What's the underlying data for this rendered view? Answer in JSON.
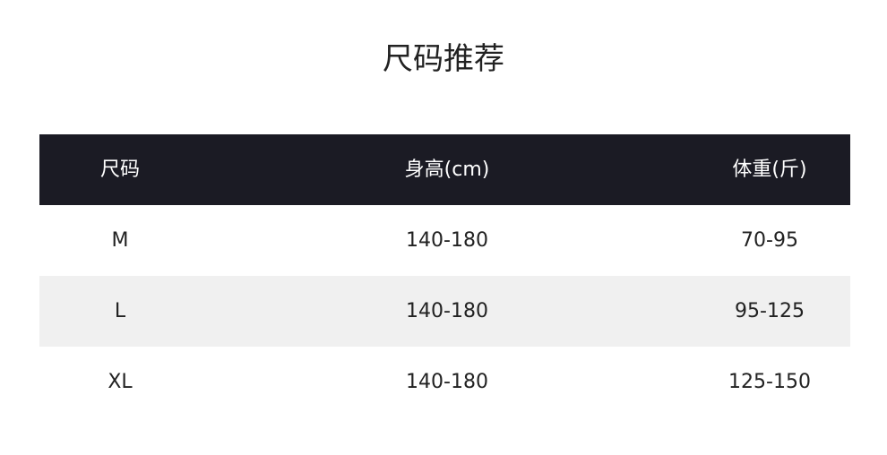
{
  "title": "尺码推荐",
  "headers": [
    "尺码",
    "身高(cm)",
    "体重(斤)"
  ],
  "rows": [
    [
      "M",
      "140-180",
      "70-95"
    ],
    [
      "L",
      "140-180",
      "95-125"
    ],
    [
      "XL",
      "140-180",
      "125-150"
    ]
  ]
}
